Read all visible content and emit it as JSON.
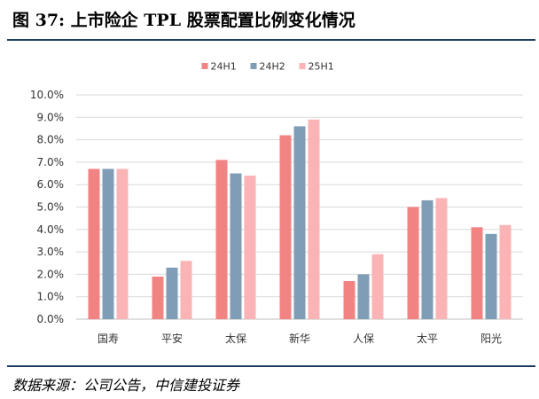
{
  "title": "图 37:  上市险企 TPL 股票配置比例变化情况",
  "source": "数据来源：公司公告，中信建投证券",
  "colors": {
    "rule": "#1f3e64",
    "grid": "#d9d9d9",
    "axis": "#bfbfbf"
  },
  "chart_data": {
    "type": "bar",
    "title": "",
    "xlabel": "",
    "ylabel": "",
    "categories": [
      "国寿",
      "平安",
      "太保",
      "新华",
      "人保",
      "太平",
      "阳光"
    ],
    "series": [
      {
        "name": "24H1",
        "color": "#f28383",
        "values": [
          6.7,
          1.9,
          7.1,
          8.2,
          1.7,
          5.0,
          4.1
        ]
      },
      {
        "name": "24H2",
        "color": "#7f9db6",
        "values": [
          6.7,
          2.3,
          6.5,
          8.6,
          2.0,
          5.3,
          3.8
        ]
      },
      {
        "name": "25H1",
        "color": "#fbb4b5",
        "values": [
          6.7,
          2.6,
          6.4,
          8.9,
          2.9,
          5.4,
          4.2
        ]
      }
    ],
    "ylim": [
      0,
      10
    ],
    "yticks": [
      "0.0%",
      "1.0%",
      "2.0%",
      "3.0%",
      "4.0%",
      "5.0%",
      "6.0%",
      "7.0%",
      "8.0%",
      "9.0%",
      "10.0%"
    ],
    "grid": true,
    "legend": "top-center"
  }
}
